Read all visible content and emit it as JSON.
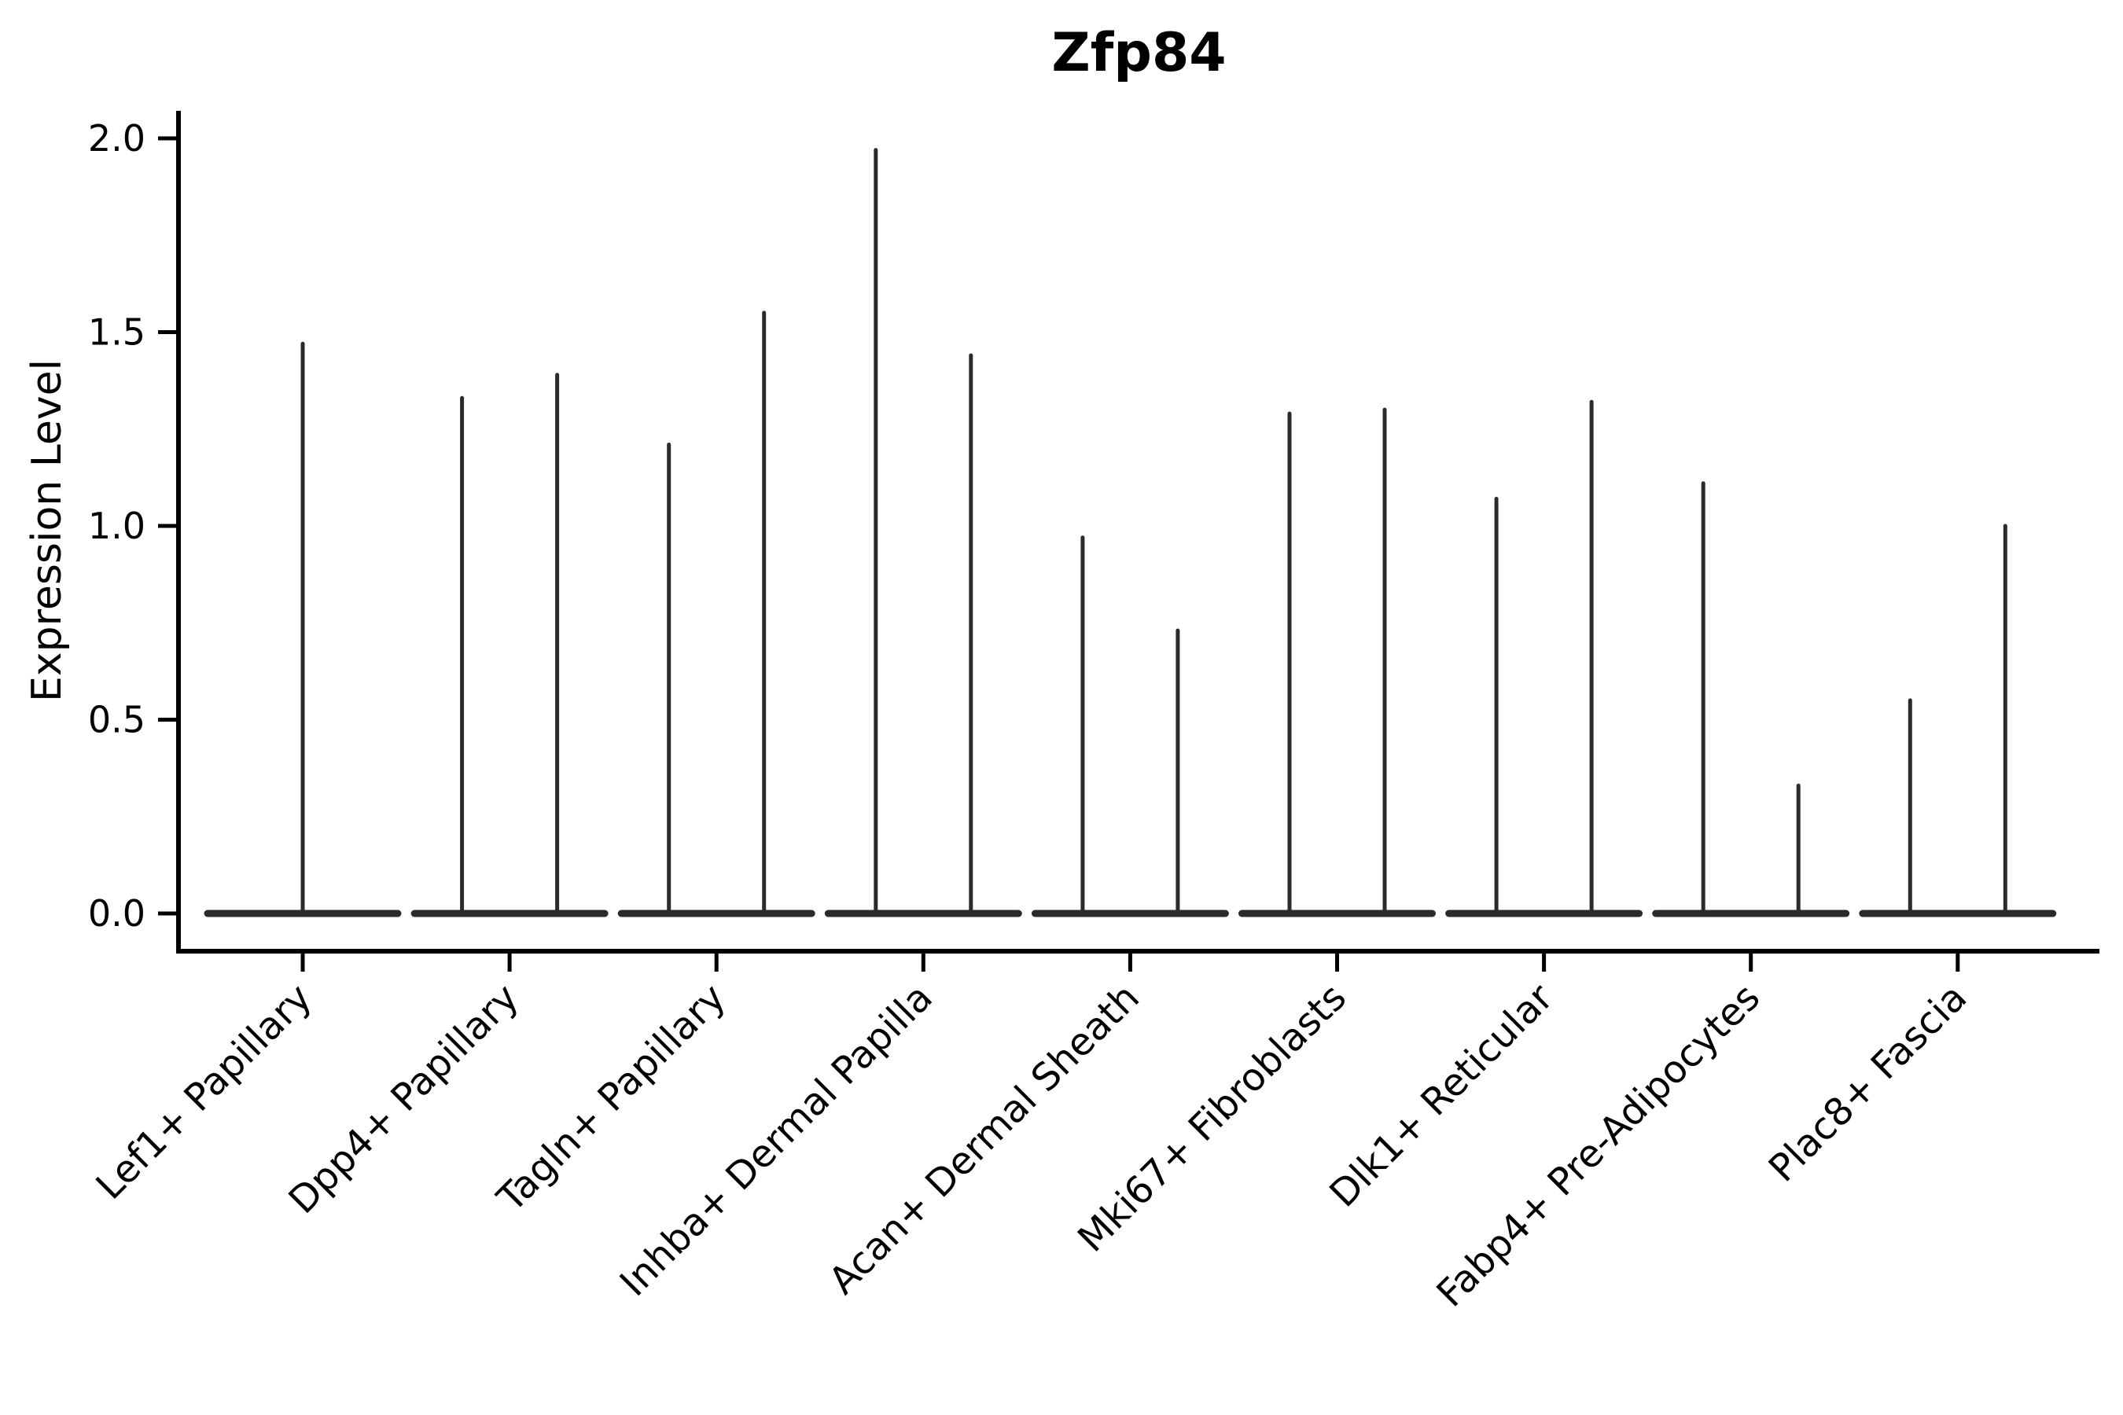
{
  "page": {
    "background": "#ffffff"
  },
  "chart_data": {
    "type": "violin",
    "title": "Zfp84",
    "ylabel": "Expression Level",
    "xlabel": "",
    "yticks": [
      0.0,
      0.5,
      1.0,
      1.5,
      2.0
    ],
    "ylim": [
      -0.09,
      2.07
    ],
    "grid": false,
    "legend": null,
    "axis_color": "#000000",
    "line_color": "#2b2b2b",
    "categories": [
      "Lef1+ Papillary",
      "Dpp4+ Papillary",
      "Tagln+ Papillary",
      "Inhba+ Dermal Papilla",
      "Acan+ Dermal Sheath",
      "Mki67+ Fibroblasts",
      "Dlk1+ Reticular",
      "Fabp4+ Pre-Adipocytes",
      "Plac8+ Fascia"
    ],
    "violins": [
      {
        "category": "Lef1+ Papillary",
        "split": false,
        "max_expression": [
          1.47
        ]
      },
      {
        "category": "Dpp4+ Papillary",
        "split": true,
        "max_expression": [
          1.33,
          1.39
        ]
      },
      {
        "category": "Tagln+ Papillary",
        "split": true,
        "max_expression": [
          1.21,
          1.55
        ]
      },
      {
        "category": "Inhba+ Dermal Papilla",
        "split": true,
        "max_expression": [
          1.97,
          1.44
        ]
      },
      {
        "category": "Acan+ Dermal Sheath",
        "split": true,
        "max_expression": [
          0.97,
          0.73
        ]
      },
      {
        "category": "Mki67+ Fibroblasts",
        "split": true,
        "max_expression": [
          1.29,
          1.3
        ]
      },
      {
        "category": "Dlk1+ Reticular",
        "split": true,
        "max_expression": [
          1.07,
          1.32
        ]
      },
      {
        "category": "Fabp4+ Pre-Adipocytes",
        "split": true,
        "max_expression": [
          1.11,
          0.33
        ]
      },
      {
        "category": "Plac8+ Fascia",
        "split": true,
        "max_expression": [
          0.55,
          1.0
        ]
      }
    ]
  }
}
